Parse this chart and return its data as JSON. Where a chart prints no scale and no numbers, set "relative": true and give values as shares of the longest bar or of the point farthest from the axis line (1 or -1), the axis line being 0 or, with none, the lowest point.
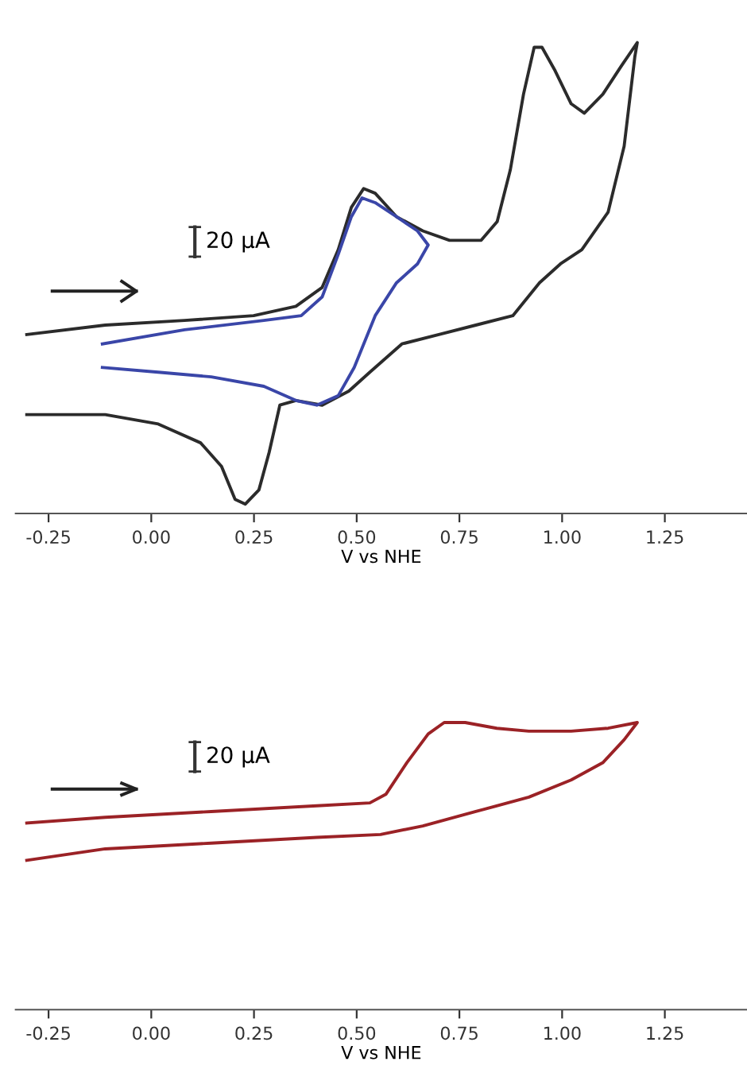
{
  "chart_data": [
    {
      "type": "line",
      "relative": true,
      "xlabel": "V vs NHE",
      "xlim": [
        -0.33,
        1.45
      ],
      "xticks": [
        {
          "value": -0.25,
          "label": "-0.25"
        },
        {
          "value": 0,
          "label": "0.00"
        },
        {
          "value": 0.25,
          "label": "0.25"
        },
        {
          "value": 0.5,
          "label": "0.50"
        },
        {
          "value": 0.75,
          "label": "0.75"
        },
        {
          "value": 1,
          "label": "1.00"
        },
        {
          "value": 1.25,
          "label": "1.25"
        }
      ],
      "annotations": [
        "20 µA"
      ],
      "grid": false,
      "legend": false,
      "marker": "none",
      "line_style": "solid",
      "series": [
        {
          "color": "#2b2b2b",
          "x": [
            -0.303,
            -0.112,
            0.081,
            0.249,
            0.352,
            0.416,
            0.455,
            0.487,
            0.517,
            0.545,
            0.597,
            0.661,
            0.726,
            0.803,
            0.842,
            0.874,
            0.906,
            0.932,
            0.951,
            0.983,
            1.022,
            1.054,
            1.099,
            1.144,
            1.183,
            1.177,
            1.151,
            1.112,
            1.048,
            0.996,
            0.945,
            0.88,
            0.79,
            0.7,
            0.61,
            0.532,
            0.481,
            0.416,
            0.352,
            0.313,
            0.287,
            0.262,
            0.229,
            0.204,
            0.171,
            0.12,
            0.017,
            -0.112,
            -0.303
          ],
          "values": [
            0.38,
            0.4,
            0.41,
            0.42,
            0.44,
            0.48,
            0.56,
            0.65,
            0.69,
            0.68,
            0.63,
            0.6,
            0.58,
            0.58,
            0.62,
            0.73,
            0.89,
            0.99,
            0.99,
            0.94,
            0.87,
            0.85,
            0.89,
            0.95,
            1.0,
            0.97,
            0.78,
            0.64,
            0.56,
            0.53,
            0.49,
            0.42,
            0.4,
            0.38,
            0.36,
            0.3,
            0.26,
            0.23,
            0.24,
            0.23,
            0.13,
            0.05,
            0.02,
            0.03,
            0.1,
            0.15,
            0.19,
            0.21,
            0.21
          ]
        },
        {
          "color": "#3a46a8",
          "x": [
            -0.119,
            0.081,
            0.274,
            0.365,
            0.416,
            0.455,
            0.487,
            0.513,
            0.545,
            0.597,
            0.648,
            0.674,
            0.648,
            0.597,
            0.545,
            0.494,
            0.455,
            0.403,
            0.352,
            0.274,
            0.146,
            0.017,
            -0.119
          ],
          "values": [
            0.36,
            0.39,
            0.41,
            0.42,
            0.46,
            0.55,
            0.63,
            0.67,
            0.66,
            0.63,
            0.6,
            0.57,
            0.53,
            0.49,
            0.42,
            0.31,
            0.25,
            0.23,
            0.24,
            0.27,
            0.29,
            0.3,
            0.31
          ]
        }
      ]
    },
    {
      "type": "line",
      "relative": true,
      "xlabel": "V vs NHE",
      "xlim": [
        -0.33,
        1.45
      ],
      "xticks": [
        {
          "value": -0.25,
          "label": "-0.25"
        },
        {
          "value": 0,
          "label": "0.00"
        },
        {
          "value": 0.25,
          "label": "0.25"
        },
        {
          "value": 0.5,
          "label": "0.50"
        },
        {
          "value": 0.75,
          "label": "0.75"
        },
        {
          "value": 1,
          "label": "1.00"
        },
        {
          "value": 1.25,
          "label": "1.25"
        }
      ],
      "annotations": [
        "20 µA"
      ],
      "grid": false,
      "legend": false,
      "marker": "none",
      "line_style": "solid",
      "series": [
        {
          "color": "#9b2226",
          "x": [
            -0.303,
            -0.112,
            0.146,
            0.403,
            0.532,
            0.571,
            0.622,
            0.674,
            0.713,
            0.764,
            0.841,
            0.919,
            1.022,
            1.112,
            1.183,
            1.151,
            1.099,
            1.022,
            0.919,
            0.79,
            0.661,
            0.558,
            0.403,
            0.146,
            -0.112,
            -0.303
          ],
          "values": [
            0.65,
            0.67,
            0.69,
            0.71,
            0.72,
            0.75,
            0.86,
            0.96,
            1.0,
            1.0,
            0.98,
            0.97,
            0.97,
            0.98,
            1.0,
            0.94,
            0.86,
            0.8,
            0.74,
            0.69,
            0.64,
            0.61,
            0.6,
            0.58,
            0.56,
            0.52
          ]
        }
      ]
    }
  ]
}
